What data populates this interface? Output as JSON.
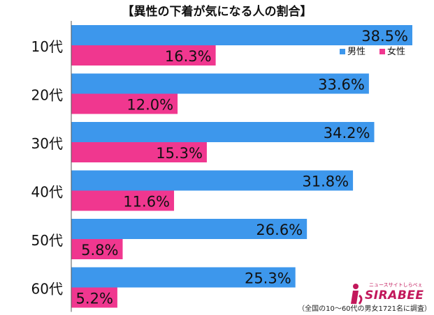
{
  "title": "【異性の下着が気になる人の割合】",
  "footnote": "（全国の10～60代の男女1721名に調査）",
  "logo": {
    "sub": "ニュースサイトしらべぇ",
    "main": "SIRABEE"
  },
  "colors": {
    "male": "#3d97ec",
    "female": "#f0378f",
    "axis": "#555555"
  },
  "chart_data": {
    "type": "bar",
    "orientation": "horizontal",
    "categories": [
      "10代",
      "20代",
      "30代",
      "40代",
      "50代",
      "60代"
    ],
    "series": [
      {
        "name": "男性",
        "values": [
          38.5,
          33.6,
          34.2,
          31.8,
          26.6,
          25.3
        ]
      },
      {
        "name": "女性",
        "values": [
          16.3,
          12.0,
          15.3,
          11.6,
          5.8,
          5.2
        ]
      }
    ],
    "value_suffix": "%",
    "xlim": [
      0,
      40
    ],
    "legend": "top-right",
    "grid": false
  }
}
